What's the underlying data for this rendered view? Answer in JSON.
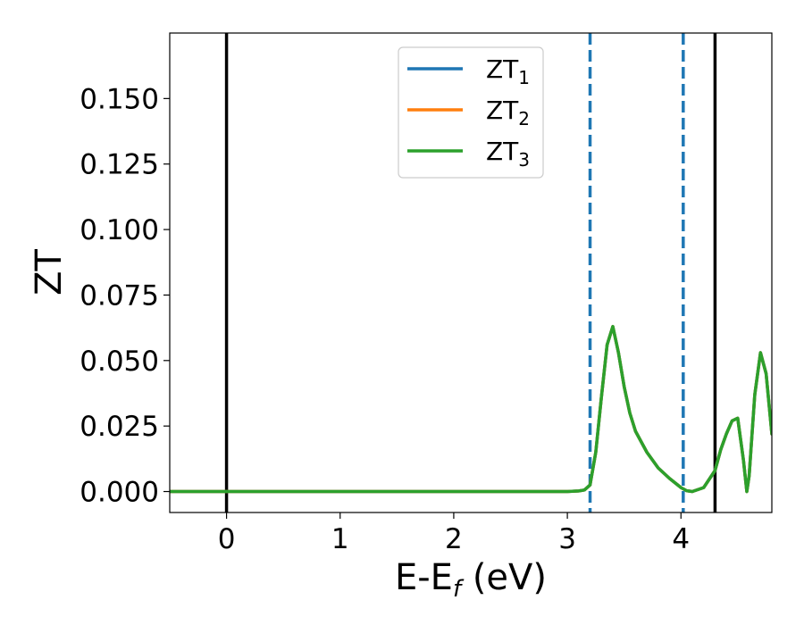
{
  "chart_data": {
    "type": "line",
    "xlabel": "E-E_f (eV)",
    "xlabel_parts": {
      "main": "E-E",
      "sub": "f",
      "tail": " (eV)"
    },
    "ylabel": "ZT",
    "xlim": [
      -0.5,
      4.8
    ],
    "ylim": [
      -0.008,
      0.175
    ],
    "xticks": [
      0,
      1,
      2,
      3,
      4
    ],
    "xtick_labels": [
      "0",
      "1",
      "2",
      "3",
      "4"
    ],
    "yticks": [
      0.0,
      0.025,
      0.05,
      0.075,
      0.1,
      0.125,
      0.15
    ],
    "ytick_labels": [
      "0.000",
      "0.025",
      "0.050",
      "0.075",
      "0.100",
      "0.125",
      "0.150"
    ],
    "grid": false,
    "legend_position": "top-center",
    "vlines_solid": [
      0.0,
      4.3
    ],
    "vlines_dashed": [
      3.2,
      4.02
    ],
    "vline_solid_color": "#000000",
    "vline_dashed_color": "#1f77b4",
    "series": [
      {
        "name": "ZT_1",
        "name_main": "ZT",
        "name_sub": "1",
        "color": "#1f77b4",
        "x": [
          -0.5,
          3.0,
          3.1,
          3.15,
          3.2,
          3.25,
          3.3,
          3.35,
          3.4,
          3.45,
          3.5,
          3.55,
          3.6,
          3.7,
          3.8,
          3.9,
          4.0,
          4.05,
          4.1,
          4.2,
          4.3,
          4.35,
          4.4,
          4.45,
          4.5,
          4.55,
          4.58,
          4.6,
          4.65,
          4.7,
          4.75,
          4.8
        ],
        "y": [
          0.0,
          0.0,
          0.0002,
          0.0006,
          0.0025,
          0.015,
          0.036,
          0.056,
          0.063,
          0.053,
          0.04,
          0.03,
          0.023,
          0.015,
          0.009,
          0.005,
          0.0015,
          0.0003,
          0.0,
          0.0015,
          0.008,
          0.016,
          0.022,
          0.027,
          0.028,
          0.012,
          0.0,
          0.006,
          0.037,
          0.053,
          0.045,
          0.022
        ]
      },
      {
        "name": "ZT_2",
        "name_main": "ZT",
        "name_sub": "2",
        "color": "#ff7f0e",
        "x": [
          -0.5,
          3.0,
          3.1,
          3.15,
          3.2,
          3.25,
          3.3,
          3.35,
          3.4,
          3.45,
          3.5,
          3.55,
          3.6,
          3.7,
          3.8,
          3.9,
          4.0,
          4.05,
          4.1,
          4.2,
          4.3,
          4.35,
          4.4,
          4.45,
          4.5,
          4.55,
          4.58,
          4.6,
          4.65,
          4.7,
          4.75,
          4.8
        ],
        "y": [
          0.0,
          0.0,
          0.0002,
          0.0006,
          0.0025,
          0.015,
          0.036,
          0.056,
          0.063,
          0.053,
          0.04,
          0.03,
          0.023,
          0.015,
          0.009,
          0.005,
          0.0015,
          0.0003,
          0.0,
          0.0015,
          0.008,
          0.016,
          0.022,
          0.027,
          0.028,
          0.012,
          0.0,
          0.006,
          0.037,
          0.053,
          0.045,
          0.022
        ]
      },
      {
        "name": "ZT_3",
        "name_main": "ZT",
        "name_sub": "3",
        "color": "#2ca02c",
        "x": [
          -0.5,
          3.0,
          3.1,
          3.15,
          3.2,
          3.25,
          3.3,
          3.35,
          3.4,
          3.45,
          3.5,
          3.55,
          3.6,
          3.7,
          3.8,
          3.9,
          4.0,
          4.05,
          4.1,
          4.2,
          4.3,
          4.35,
          4.4,
          4.45,
          4.5,
          4.55,
          4.58,
          4.6,
          4.65,
          4.7,
          4.75,
          4.8
        ],
        "y": [
          0.0,
          0.0,
          0.0002,
          0.0006,
          0.0025,
          0.015,
          0.036,
          0.056,
          0.063,
          0.053,
          0.04,
          0.03,
          0.023,
          0.015,
          0.009,
          0.005,
          0.0015,
          0.0003,
          0.0,
          0.0015,
          0.008,
          0.016,
          0.022,
          0.027,
          0.028,
          0.012,
          0.0,
          0.006,
          0.037,
          0.053,
          0.045,
          0.022
        ]
      }
    ]
  }
}
